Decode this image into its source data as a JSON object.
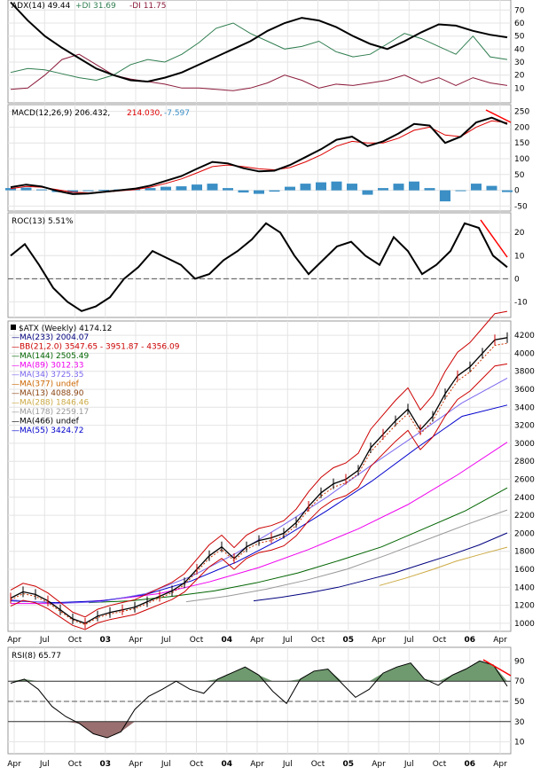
{
  "chart_data": {
    "type": "line",
    "x_ticks": [
      "Apr",
      "Jul",
      "Oct",
      "03",
      "Apr",
      "Jul",
      "Oct",
      "04",
      "Apr",
      "Jul",
      "Oct",
      "05",
      "Apr",
      "Jul",
      "Oct",
      "06",
      "Apr"
    ],
    "adx": {
      "title": "ADX(14) 49.44",
      "pdi_label": "+DI 31.69",
      "mdi_label": "-DI 11.75",
      "yticks": [
        "70",
        "60",
        "50",
        "40",
        "30",
        "20",
        "10"
      ],
      "ylim": [
        0,
        75
      ],
      "colors": {
        "adx": "#000000",
        "pdi": "#2e7d4f",
        "mdi": "#8b1a3a"
      },
      "adx_values": [
        76,
        62,
        50,
        41,
        33,
        25,
        20,
        16,
        15,
        18,
        22,
        28,
        34,
        40,
        46,
        54,
        60,
        64,
        62,
        57,
        50,
        44,
        40,
        46,
        53,
        59,
        58,
        54,
        51,
        49
      ],
      "pdi_values": [
        22,
        25,
        24,
        21,
        18,
        16,
        20,
        28,
        32,
        30,
        36,
        45,
        56,
        60,
        52,
        46,
        40,
        42,
        46,
        38,
        34,
        36,
        44,
        52,
        48,
        42,
        36,
        50,
        34,
        32
      ],
      "mdi_values": [
        9,
        10,
        20,
        32,
        36,
        28,
        20,
        17,
        15,
        13,
        10,
        10,
        9,
        8,
        10,
        14,
        20,
        16,
        10,
        13,
        12,
        14,
        16,
        20,
        14,
        18,
        12,
        18,
        14,
        12
      ]
    },
    "macd": {
      "title": "MACD(12,26,9) 206.432,",
      "signal_label": "214.030,",
      "hist_label": "-7.597",
      "yticks": [
        "250",
        "200",
        "150",
        "100",
        "50",
        "0",
        "-50"
      ],
      "ylim": [
        -60,
        260
      ],
      "colors": {
        "macd": "#000000",
        "signal": "#dd0000",
        "hist": "#3b8fc5"
      },
      "macd_values": [
        10,
        18,
        12,
        -2,
        -12,
        -10,
        -5,
        0,
        5,
        15,
        30,
        45,
        68,
        90,
        85,
        70,
        60,
        62,
        80,
        105,
        130,
        160,
        170,
        140,
        155,
        180,
        210,
        205,
        150,
        170,
        215,
        230,
        210
      ],
      "signal_values": [
        5,
        12,
        10,
        2,
        -6,
        -8,
        -6,
        -2,
        2,
        10,
        22,
        36,
        55,
        75,
        80,
        75,
        68,
        65,
        72,
        90,
        112,
        140,
        155,
        150,
        150,
        165,
        190,
        200,
        175,
        170,
        200,
        220,
        214
      ]
    },
    "roc": {
      "title": "ROC(13) 5.51%",
      "yticks": [
        "20",
        "10",
        "0",
        "-10"
      ],
      "ylim": [
        -16,
        27
      ],
      "values": [
        10,
        15,
        6,
        -4,
        -10,
        -14,
        -12,
        -8,
        0,
        5,
        12,
        9,
        6,
        0,
        2,
        8,
        12,
        17,
        24,
        20,
        10,
        2,
        8,
        14,
        16,
        10,
        6,
        18,
        12,
        2,
        6,
        12,
        24,
        22,
        10,
        5
      ]
    },
    "price": {
      "title": "$ATX (Weekly) 4174.12",
      "yticks": [
        "4200",
        "4000",
        "3800",
        "3600",
        "3400",
        "3200",
        "3000",
        "2800",
        "2600",
        "2400",
        "2200",
        "2000",
        "1800",
        "1600",
        "1400",
        "1200",
        "1000"
      ],
      "ylim": [
        950,
        4300
      ],
      "legend": [
        {
          "label": "MA(233) 2004.07",
          "color": "#00007f"
        },
        {
          "label": "BB(21,2.0) 3547.65 - 3951.87 - 4356.09",
          "color": "#cc0000"
        },
        {
          "label": "MA(144) 2505.49",
          "color": "#006400"
        },
        {
          "label": "MA(89) 3012.33",
          "color": "#ee00ee"
        },
        {
          "label": "MA(34) 3725.35",
          "color": "#7b68ee"
        },
        {
          "label": "MA(377) undef",
          "color": "#cc6600"
        },
        {
          "label": "MA(13) 4088.90",
          "color": "#8b4513"
        },
        {
          "label": "MA(288) 1846.46",
          "color": "#ccaa44"
        },
        {
          "label": "MA(178) 2259.17",
          "color": "#999999"
        },
        {
          "label": "MA(466) undef",
          "color": "#000000"
        },
        {
          "label": "MA(55) 3424.72",
          "color": "#0000cc"
        }
      ],
      "close_values": [
        1280,
        1350,
        1320,
        1250,
        1150,
        1050,
        1000,
        1080,
        1120,
        1150,
        1180,
        1240,
        1300,
        1360,
        1450,
        1600,
        1750,
        1850,
        1720,
        1850,
        1920,
        1950,
        2000,
        2120,
        2300,
        2450,
        2550,
        2600,
        2700,
        2950,
        3100,
        3250,
        3380,
        3150,
        3300,
        3550,
        3750,
        3850,
        4000,
        4150,
        4174
      ],
      "ma233_values": [
        1250,
        1290,
        1340,
        1400,
        1480,
        1560,
        1660,
        1760,
        1870,
        2004
      ],
      "ma144_values": [
        1230,
        1250,
        1300,
        1360,
        1450,
        1560,
        1700,
        1850,
        2050,
        2250,
        2505
      ],
      "ma89_values": [
        1220,
        1220,
        1260,
        1330,
        1460,
        1620,
        1820,
        2050,
        2320,
        2650,
        3012
      ],
      "ma55_values": [
        1250,
        1230,
        1250,
        1320,
        1470,
        1680,
        1940,
        2250,
        2580,
        2950,
        3300,
        3425
      ],
      "ma34_values": [
        1260,
        1220,
        1240,
        1330,
        1520,
        1780,
        2080,
        2400,
        2760,
        3100,
        3450,
        3725
      ],
      "ma178_values": [
        1240,
        1300,
        1380,
        1480,
        1600,
        1760,
        1930,
        2100,
        2259
      ],
      "ma288_values": [
        1420,
        1500,
        1590,
        1690,
        1770,
        1846
      ]
    },
    "rsi": {
      "title": "RSI(8) 65.77",
      "yticks": [
        "90",
        "70",
        "50",
        "30",
        "10"
      ],
      "ylim": [
        0,
        100
      ],
      "overbought": 70,
      "oversold": 30,
      "values": [
        68,
        72,
        62,
        45,
        35,
        28,
        18,
        14,
        20,
        42,
        55,
        62,
        70,
        62,
        58,
        72,
        78,
        84,
        76,
        60,
        48,
        72,
        80,
        82,
        68,
        54,
        62,
        78,
        84,
        88,
        72,
        66,
        76,
        82,
        90,
        86,
        65
      ]
    }
  }
}
